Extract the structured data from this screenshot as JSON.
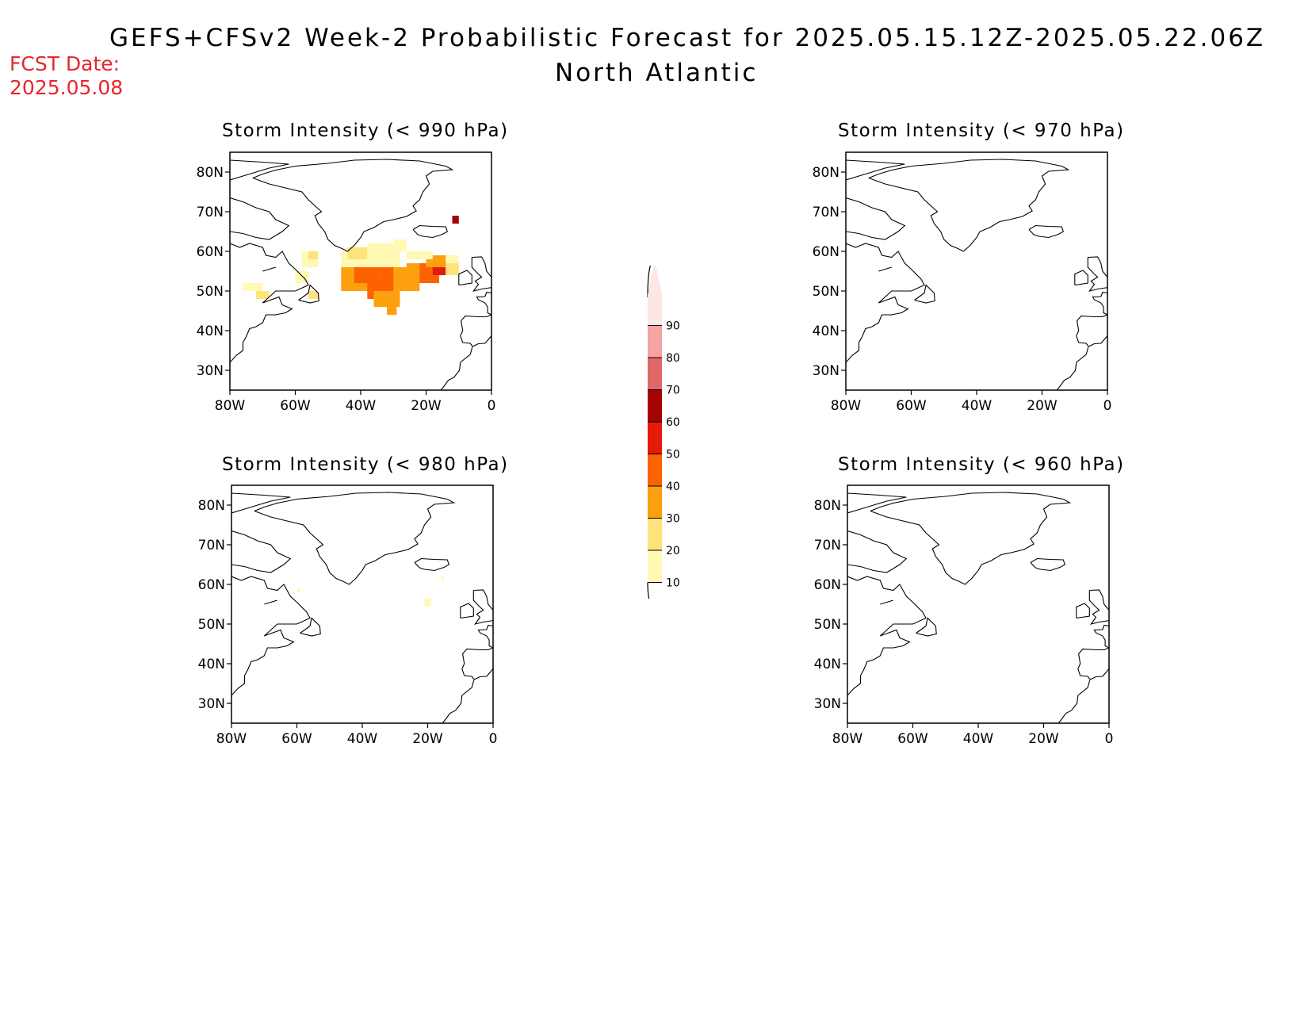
{
  "header": {
    "title": "GEFS+CFSv2 Week-2 Probabilistic Forecast for 2025.05.15.12Z-2025.05.22.06Z",
    "subtitle": "North Atlantic",
    "fcst_label": "FCST Date:",
    "fcst_date": "2025.05.08"
  },
  "panels": [
    {
      "title": "Storm Intensity (< 990 hPa)",
      "region": "top-left"
    },
    {
      "title": "Storm Intensity (< 970 hPa)",
      "region": "top-right"
    },
    {
      "title": "Storm Intensity (< 980 hPa)",
      "region": "bottom-left"
    },
    {
      "title": "Storm Intensity (< 960 hPa)",
      "region": "bottom-right"
    }
  ],
  "axes": {
    "x_ticks": [
      "80W",
      "60W",
      "40W",
      "20W",
      "0"
    ],
    "y_ticks": [
      "80N",
      "70N",
      "60N",
      "50N",
      "40N",
      "30N"
    ],
    "lon_range": [
      -80,
      0
    ],
    "lat_range": [
      25,
      85
    ]
  },
  "colorbar": {
    "levels": [
      "10",
      "20",
      "30",
      "40",
      "50",
      "60",
      "70",
      "80",
      "90"
    ],
    "colors": [
      "#fff9b3",
      "#fde47a",
      "#fca010",
      "#fd6200",
      "#e41a0a",
      "#a50303",
      "#e16868",
      "#f5a3a3",
      "#fde6e6"
    ]
  }
}
